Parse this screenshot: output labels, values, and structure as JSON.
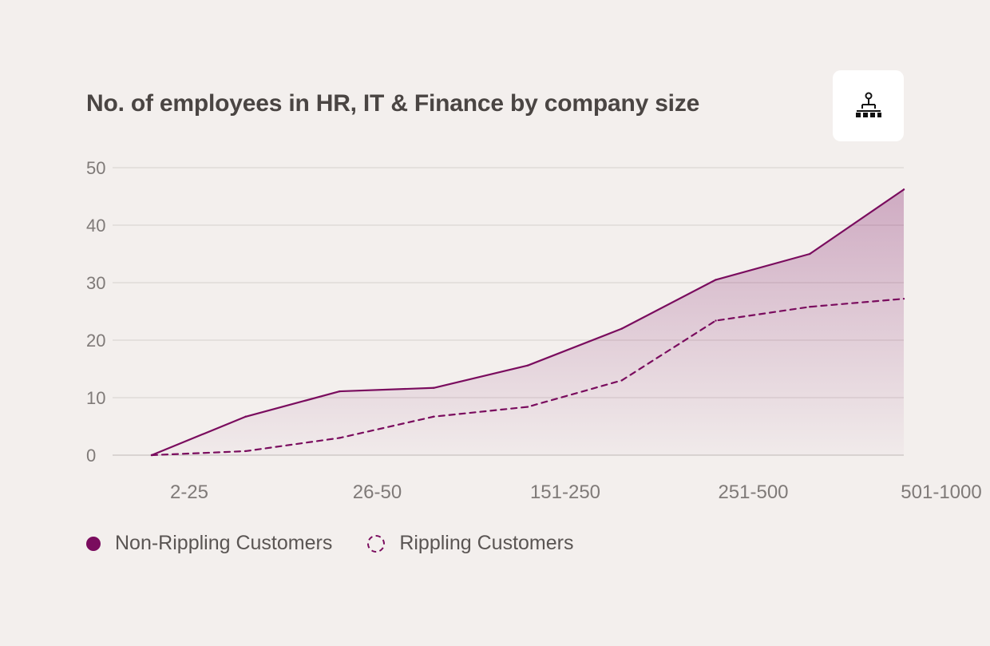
{
  "chart_data": {
    "type": "area",
    "title": "No. of employees in HR, IT & Finance by company size",
    "xlabel": "",
    "ylabel": "",
    "ylim": [
      0,
      50
    ],
    "yticks": [
      0,
      10,
      20,
      30,
      40,
      50
    ],
    "x_tick_labels": [
      "2-25",
      "26-50",
      "151-250",
      "251-500",
      "501-1000"
    ],
    "x_points": 9,
    "grid": true,
    "legend_placement": "bottom-left",
    "series": [
      {
        "name": "Non-Rippling Customers",
        "style": "solid",
        "filled": true,
        "color": "#7a0c5e",
        "values": [
          0,
          6.7,
          11.1,
          11.7,
          15.6,
          22,
          30.5,
          35,
          46.2
        ]
      },
      {
        "name": "Rippling Customers",
        "style": "dashed",
        "filled": false,
        "color": "#7a0c5e",
        "values": [
          0,
          0.7,
          3,
          6.7,
          8.4,
          13,
          23.4,
          25.8,
          27.2
        ]
      }
    ]
  },
  "icons": {
    "header_icon": "org-chart-icon"
  }
}
